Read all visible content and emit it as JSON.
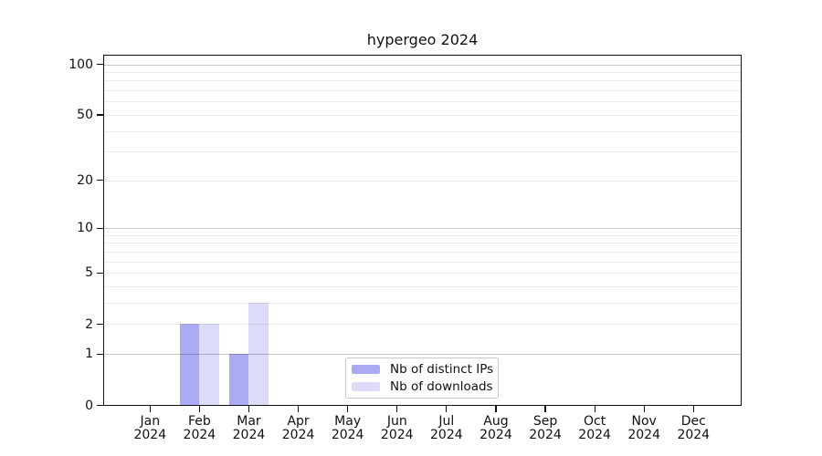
{
  "chart_data": {
    "type": "bar",
    "title": "hypergeo 2024",
    "categories": [
      {
        "month": "Jan",
        "year": "2024"
      },
      {
        "month": "Feb",
        "year": "2024"
      },
      {
        "month": "Mar",
        "year": "2024"
      },
      {
        "month": "Apr",
        "year": "2024"
      },
      {
        "month": "May",
        "year": "2024"
      },
      {
        "month": "Jun",
        "year": "2024"
      },
      {
        "month": "Jul",
        "year": "2024"
      },
      {
        "month": "Aug",
        "year": "2024"
      },
      {
        "month": "Sep",
        "year": "2024"
      },
      {
        "month": "Oct",
        "year": "2024"
      },
      {
        "month": "Nov",
        "year": "2024"
      },
      {
        "month": "Dec",
        "year": "2024"
      }
    ],
    "series": [
      {
        "name": "Nb of distinct IPs",
        "color": "#aaaaf5",
        "values": [
          0,
          2,
          1,
          0,
          0,
          0,
          0,
          0,
          0,
          0,
          0,
          0
        ]
      },
      {
        "name": "Nb of downloads",
        "color": "#dcdcf8",
        "values": [
          0,
          2,
          3,
          0,
          0,
          0,
          0,
          0,
          0,
          0,
          0,
          0
        ]
      }
    ],
    "y_axis": {
      "scale": "log1p",
      "ylim": [
        0,
        115
      ],
      "tick_values": [
        0,
        1,
        2,
        5,
        10,
        20,
        50,
        100
      ],
      "tick_labels": [
        "0",
        "1",
        "2",
        "5",
        "10",
        "20",
        "50",
        "100"
      ],
      "gridlines_minor": [
        2,
        3,
        4,
        5,
        6,
        7,
        8,
        9,
        20,
        30,
        40,
        50,
        60,
        70,
        80,
        90
      ],
      "gridlines_major": [
        1,
        10,
        100
      ],
      "grid_minor_color": "rgba(0,0,0,0.075)",
      "grid_major_color": "rgba(0,0,0,0.215)"
    },
    "legend": {
      "position": "bottom-center",
      "border_color": "#c8c8c8",
      "background": "#ffffff"
    }
  }
}
